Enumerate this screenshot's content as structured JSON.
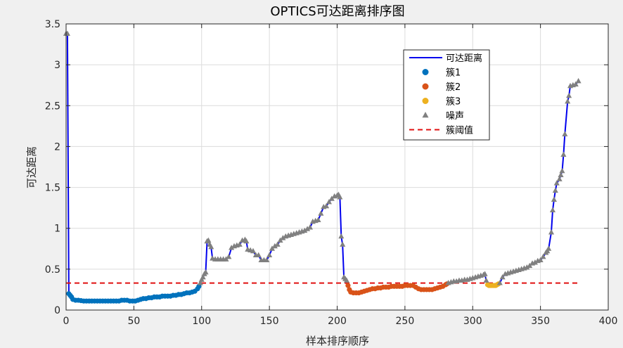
{
  "chart_data": {
    "type": "line",
    "title": "OPTICS可达距离排序图",
    "xlabel": "样本排序顺序",
    "ylabel": "可达距离",
    "xlim": [
      0,
      400
    ],
    "ylim": [
      0,
      3.5
    ],
    "xticks": [
      "0",
      "50",
      "100",
      "150",
      "200",
      "250",
      "300",
      "350",
      "400"
    ],
    "yticks": [
      "0",
      "0.5",
      "1",
      "1.5",
      "2",
      "2.5",
      "3",
      "3.5"
    ],
    "grid": true,
    "legend_position": "top-right",
    "threshold": 0.33,
    "colors": {
      "line": "#0000ee",
      "cluster1": "#0072bd",
      "cluster2": "#d95319",
      "cluster3": "#edb120",
      "noise": "#808080",
      "threshold": "#e01010"
    },
    "legend": [
      {
        "key": "line",
        "label": "可达距离"
      },
      {
        "key": "cluster1",
        "label": "簇1"
      },
      {
        "key": "cluster2",
        "label": "簇2"
      },
      {
        "key": "cluster3",
        "label": "簇3"
      },
      {
        "key": "noise",
        "label": "噪声"
      },
      {
        "key": "threshold",
        "label": "簇阈值"
      }
    ],
    "noise_segments": [
      [
        [
          0,
          3.38
        ],
        [
          1,
          3.38
        ]
      ],
      [
        [
          99,
          0.33
        ],
        [
          100,
          0.37
        ],
        [
          101,
          0.4
        ],
        [
          102,
          0.44
        ],
        [
          103,
          0.46
        ],
        [
          104,
          0.84
        ],
        [
          105,
          0.85
        ],
        [
          106,
          0.8
        ],
        [
          107,
          0.77
        ],
        [
          108,
          0.63
        ],
        [
          110,
          0.62
        ],
        [
          112,
          0.62
        ],
        [
          114,
          0.62
        ],
        [
          116,
          0.62
        ],
        [
          118,
          0.62
        ],
        [
          120,
          0.65
        ],
        [
          122,
          0.76
        ],
        [
          124,
          0.78
        ],
        [
          126,
          0.79
        ],
        [
          128,
          0.8
        ],
        [
          130,
          0.85
        ],
        [
          132,
          0.86
        ],
        [
          133,
          0.84
        ],
        [
          134,
          0.74
        ],
        [
          136,
          0.73
        ],
        [
          138,
          0.72
        ],
        [
          140,
          0.67
        ],
        [
          142,
          0.67
        ],
        [
          144,
          0.61
        ],
        [
          146,
          0.61
        ],
        [
          148,
          0.61
        ],
        [
          150,
          0.67
        ],
        [
          152,
          0.75
        ],
        [
          154,
          0.78
        ],
        [
          156,
          0.8
        ],
        [
          158,
          0.85
        ],
        [
          160,
          0.88
        ],
        [
          162,
          0.9
        ],
        [
          164,
          0.91
        ],
        [
          166,
          0.92
        ],
        [
          168,
          0.93
        ],
        [
          170,
          0.94
        ],
        [
          172,
          0.95
        ],
        [
          174,
          0.96
        ],
        [
          176,
          0.97
        ],
        [
          178,
          0.99
        ],
        [
          180,
          1.01
        ],
        [
          182,
          1.08
        ],
        [
          184,
          1.09
        ],
        [
          186,
          1.1
        ],
        [
          188,
          1.18
        ],
        [
          190,
          1.26
        ],
        [
          192,
          1.27
        ],
        [
          194,
          1.32
        ],
        [
          196,
          1.36
        ],
        [
          198,
          1.39
        ],
        [
          200,
          1.4
        ],
        [
          201,
          1.41
        ],
        [
          202,
          1.38
        ],
        [
          203,
          0.9
        ],
        [
          204,
          0.8
        ],
        [
          205,
          0.4
        ],
        [
          206,
          0.38
        ],
        [
          207,
          0.36
        ]
      ],
      [
        [
          282,
          0.33
        ],
        [
          284,
          0.34
        ],
        [
          286,
          0.35
        ],
        [
          288,
          0.35
        ],
        [
          290,
          0.36
        ],
        [
          292,
          0.36
        ],
        [
          294,
          0.37
        ],
        [
          296,
          0.37
        ],
        [
          298,
          0.38
        ],
        [
          300,
          0.39
        ],
        [
          302,
          0.4
        ],
        [
          304,
          0.41
        ],
        [
          306,
          0.42
        ],
        [
          308,
          0.43
        ],
        [
          309,
          0.44
        ],
        [
          310,
          0.36
        ]
      ],
      [
        [
          320,
          0.33
        ],
        [
          322,
          0.4
        ],
        [
          324,
          0.44
        ],
        [
          326,
          0.45
        ],
        [
          328,
          0.46
        ],
        [
          330,
          0.47
        ],
        [
          332,
          0.48
        ],
        [
          334,
          0.49
        ],
        [
          336,
          0.5
        ],
        [
          338,
          0.51
        ],
        [
          340,
          0.52
        ],
        [
          342,
          0.54
        ],
        [
          344,
          0.57
        ],
        [
          346,
          0.58
        ],
        [
          348,
          0.6
        ],
        [
          350,
          0.61
        ],
        [
          352,
          0.65
        ],
        [
          354,
          0.7
        ],
        [
          355,
          0.72
        ],
        [
          356,
          0.75
        ],
        [
          358,
          0.95
        ],
        [
          359,
          1.22
        ],
        [
          360,
          1.35
        ],
        [
          361,
          1.46
        ],
        [
          362,
          1.55
        ],
        [
          364,
          1.6
        ],
        [
          365,
          1.65
        ],
        [
          366,
          1.7
        ],
        [
          367,
          1.9
        ],
        [
          368,
          2.15
        ],
        [
          370,
          2.55
        ],
        [
          371,
          2.62
        ],
        [
          372,
          2.74
        ],
        [
          374,
          2.75
        ],
        [
          376,
          2.76
        ],
        [
          378,
          2.8
        ]
      ]
    ],
    "cluster1": [
      [
        2,
        0.2
      ],
      [
        3,
        0.18
      ],
      [
        4,
        0.16
      ],
      [
        5,
        0.13
      ],
      [
        7,
        0.12
      ],
      [
        9,
        0.12
      ],
      [
        11,
        0.115
      ],
      [
        13,
        0.11
      ],
      [
        15,
        0.11
      ],
      [
        17,
        0.11
      ],
      [
        19,
        0.11
      ],
      [
        21,
        0.11
      ],
      [
        23,
        0.11
      ],
      [
        25,
        0.11
      ],
      [
        27,
        0.11
      ],
      [
        29,
        0.11
      ],
      [
        31,
        0.11
      ],
      [
        33,
        0.11
      ],
      [
        35,
        0.11
      ],
      [
        37,
        0.11
      ],
      [
        39,
        0.11
      ],
      [
        41,
        0.12
      ],
      [
        43,
        0.12
      ],
      [
        45,
        0.12
      ],
      [
        47,
        0.11
      ],
      [
        49,
        0.11
      ],
      [
        51,
        0.11
      ],
      [
        53,
        0.12
      ],
      [
        55,
        0.13
      ],
      [
        57,
        0.14
      ],
      [
        59,
        0.14
      ],
      [
        61,
        0.15
      ],
      [
        63,
        0.15
      ],
      [
        65,
        0.16
      ],
      [
        67,
        0.16
      ],
      [
        69,
        0.16
      ],
      [
        71,
        0.17
      ],
      [
        73,
        0.17
      ],
      [
        75,
        0.17
      ],
      [
        77,
        0.17
      ],
      [
        79,
        0.18
      ],
      [
        81,
        0.18
      ],
      [
        83,
        0.19
      ],
      [
        85,
        0.19
      ],
      [
        87,
        0.2
      ],
      [
        89,
        0.21
      ],
      [
        91,
        0.21
      ],
      [
        93,
        0.22
      ],
      [
        95,
        0.23
      ],
      [
        97,
        0.26
      ],
      [
        98,
        0.29
      ]
    ],
    "cluster2": [
      [
        208,
        0.3
      ],
      [
        209,
        0.25
      ],
      [
        210,
        0.22
      ],
      [
        212,
        0.21
      ],
      [
        214,
        0.21
      ],
      [
        216,
        0.21
      ],
      [
        218,
        0.22
      ],
      [
        220,
        0.23
      ],
      [
        222,
        0.24
      ],
      [
        224,
        0.25
      ],
      [
        226,
        0.26
      ],
      [
        228,
        0.26
      ],
      [
        230,
        0.27
      ],
      [
        232,
        0.27
      ],
      [
        234,
        0.28
      ],
      [
        236,
        0.28
      ],
      [
        238,
        0.28
      ],
      [
        240,
        0.29
      ],
      [
        242,
        0.29
      ],
      [
        244,
        0.29
      ],
      [
        246,
        0.29
      ],
      [
        248,
        0.29
      ],
      [
        250,
        0.3
      ],
      [
        252,
        0.3
      ],
      [
        254,
        0.3
      ],
      [
        256,
        0.3
      ],
      [
        258,
        0.28
      ],
      [
        260,
        0.26
      ],
      [
        262,
        0.25
      ],
      [
        264,
        0.25
      ],
      [
        266,
        0.25
      ],
      [
        268,
        0.25
      ],
      [
        270,
        0.25
      ],
      [
        272,
        0.26
      ],
      [
        274,
        0.27
      ],
      [
        276,
        0.28
      ],
      [
        278,
        0.29
      ],
      [
        280,
        0.31
      ],
      [
        281,
        0.32
      ]
    ],
    "cluster3": [
      [
        311,
        0.31
      ],
      [
        312,
        0.3
      ],
      [
        313,
        0.3
      ],
      [
        314,
        0.3
      ],
      [
        315,
        0.3
      ],
      [
        316,
        0.3
      ],
      [
        317,
        0.3
      ],
      [
        318,
        0.31
      ],
      [
        319,
        0.32
      ]
    ]
  }
}
